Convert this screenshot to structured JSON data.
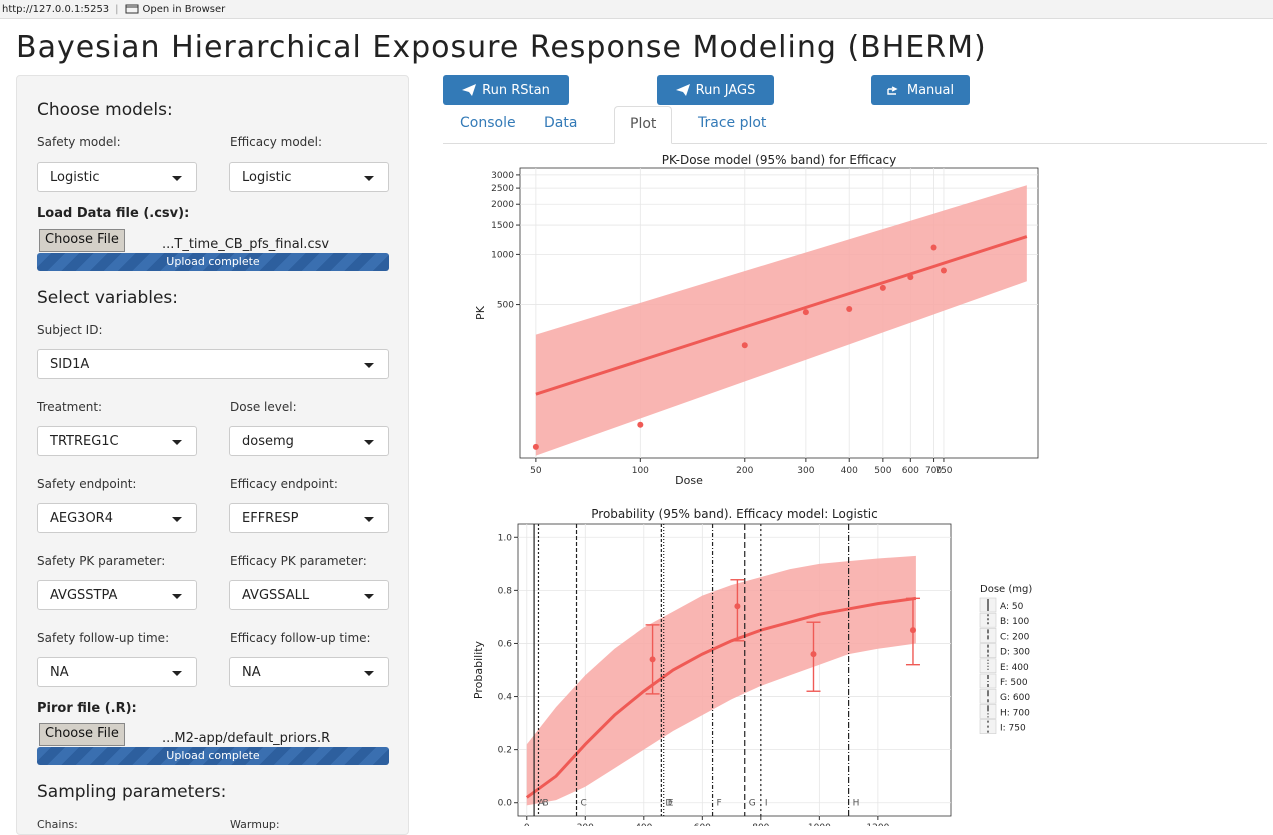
{
  "browser": {
    "url": "http://127.0.0.1:5253",
    "open_label": "Open in Browser"
  },
  "app_title": "Bayesian Hierarchical Exposure Response Modeling (BHERM)",
  "sidebar": {
    "choose_models": "Choose models:",
    "safety_model_label": "Safety model:",
    "safety_model_value": "Logistic",
    "efficacy_model_label": "Efficacy model:",
    "efficacy_model_value": "Logistic",
    "load_data_label": "Load Data file (.csv):",
    "choose_file": "Choose File",
    "data_file_name": "...T_time_CB_pfs_final.csv",
    "upload_complete": "Upload complete",
    "select_variables": "Select variables:",
    "subject_id_label": "Subject ID:",
    "subject_id_value": "SID1A",
    "treatment_label": "Treatment:",
    "treatment_value": "TRTREG1C",
    "dose_level_label": "Dose level:",
    "dose_level_value": "dosemg",
    "safety_endpoint_label": "Safety endpoint:",
    "safety_endpoint_value": "AEG3OR4",
    "efficacy_endpoint_label": "Efficacy endpoint:",
    "efficacy_endpoint_value": "EFFRESP",
    "safety_pk_label": "Safety PK parameter:",
    "safety_pk_value": "AVGSSTPA",
    "efficacy_pk_label": "Efficacy PK parameter:",
    "efficacy_pk_value": "AVGSSALL",
    "safety_followup_label": "Safety follow-up time:",
    "safety_followup_value": "NA",
    "efficacy_followup_label": "Efficacy follow-up time:",
    "efficacy_followup_value": "NA",
    "prior_file_label": "Piror file (.R):",
    "prior_file_name": "...M2-app/default_priors.R",
    "sampling_parameters": "Sampling parameters:",
    "chains_label": "Chains:",
    "warmup_label": "Warmup:"
  },
  "buttons": {
    "run_rstan": "Run RStan",
    "run_jags": "Run JAGS",
    "manual": "Manual"
  },
  "tabs": [
    "Console",
    "Data",
    "Plot",
    "Trace plot"
  ],
  "active_tab": "Plot",
  "colors": {
    "accent": "#337ab7",
    "band": "#f8a8a4",
    "line": "#ef5a55"
  },
  "chart_data": [
    {
      "type": "line",
      "title": "PK-Dose model (95% band) for Efficacy",
      "xlabel": "Dose",
      "ylabel": "PK",
      "x_scale": "log",
      "y_scale": "log",
      "x_ticks": [
        50,
        100,
        200,
        300,
        400,
        500,
        600,
        700,
        750
      ],
      "x_tick_labels": [
        "50",
        "100",
        "200",
        "300",
        "400",
        "500",
        "600",
        "700",
        "750"
      ],
      "y_ticks": [
        500,
        1000,
        1500,
        2000,
        2500,
        3000
      ],
      "y_tick_labels": [
        "500",
        "1000",
        "1500",
        "2000",
        "2500",
        "3000"
      ],
      "xlim": [
        45,
        1400
      ],
      "ylim": [
        60,
        3300
      ],
      "series": [
        {
          "values": [
            {
              "x": 50,
              "y": 145,
              "lo": 62,
              "hi": 330
            },
            {
              "x": 1300,
              "y": 1280,
              "lo": 690,
              "hi": 2600
            }
          ]
        }
      ],
      "points": [
        {
          "x": 50,
          "y": 70
        },
        {
          "x": 100,
          "y": 95
        },
        {
          "x": 200,
          "y": 285
        },
        {
          "x": 300,
          "y": 450
        },
        {
          "x": 400,
          "y": 470
        },
        {
          "x": 500,
          "y": 630
        },
        {
          "x": 600,
          "y": 730
        },
        {
          "x": 700,
          "y": 1100
        },
        {
          "x": 750,
          "y": 800
        }
      ]
    },
    {
      "type": "line",
      "title": "Probability (95% band). Efficacy model: Logistic",
      "xlabel": "",
      "ylabel": "Probability",
      "xlim": [
        -30,
        1450
      ],
      "ylim": [
        -0.05,
        1.05
      ],
      "x_ticks": [
        0,
        200,
        400,
        600,
        800,
        1000,
        1200
      ],
      "x_tick_labels": [
        "0",
        "200",
        "400",
        "600",
        "800",
        "1000",
        "1200"
      ],
      "y_ticks": [
        0.0,
        0.2,
        0.4,
        0.6,
        0.8,
        1.0
      ],
      "y_tick_labels": [
        "0.0",
        "0.2",
        "0.4",
        "0.6",
        "0.8",
        "1.0"
      ],
      "curve": [
        {
          "x": 0,
          "y": 0.02,
          "lo": -0.01,
          "hi": 0.22
        },
        {
          "x": 100,
          "y": 0.1,
          "lo": 0.01,
          "hi": 0.36
        },
        {
          "x": 200,
          "y": 0.22,
          "lo": 0.06,
          "hi": 0.48
        },
        {
          "x": 300,
          "y": 0.33,
          "lo": 0.13,
          "hi": 0.58
        },
        {
          "x": 400,
          "y": 0.42,
          "lo": 0.2,
          "hi": 0.66
        },
        {
          "x": 500,
          "y": 0.5,
          "lo": 0.27,
          "hi": 0.72
        },
        {
          "x": 600,
          "y": 0.56,
          "lo": 0.33,
          "hi": 0.78
        },
        {
          "x": 700,
          "y": 0.61,
          "lo": 0.39,
          "hi": 0.82
        },
        {
          "x": 800,
          "y": 0.65,
          "lo": 0.44,
          "hi": 0.85
        },
        {
          "x": 900,
          "y": 0.68,
          "lo": 0.48,
          "hi": 0.88
        },
        {
          "x": 1000,
          "y": 0.71,
          "lo": 0.52,
          "hi": 0.9
        },
        {
          "x": 1100,
          "y": 0.73,
          "lo": 0.56,
          "hi": 0.91
        },
        {
          "x": 1200,
          "y": 0.75,
          "lo": 0.58,
          "hi": 0.92
        },
        {
          "x": 1330,
          "y": 0.77,
          "lo": 0.6,
          "hi": 0.93
        }
      ],
      "observed": [
        {
          "x": 430,
          "y": 0.54,
          "lo": 0.41,
          "hi": 0.67
        },
        {
          "x": 720,
          "y": 0.74,
          "lo": 0.61,
          "hi": 0.84
        },
        {
          "x": 980,
          "y": 0.56,
          "lo": 0.42,
          "hi": 0.68
        },
        {
          "x": 1320,
          "y": 0.65,
          "lo": 0.52,
          "hi": 0.77
        }
      ],
      "dose_lines": [
        {
          "label": "A",
          "x": 25,
          "legend": "A: 50"
        },
        {
          "label": "B",
          "x": 40,
          "legend": "B: 100"
        },
        {
          "label": "C",
          "x": 170,
          "legend": "C: 200"
        },
        {
          "label": "D",
          "x": 460,
          "legend": "D: 300"
        },
        {
          "label": "E",
          "x": 468,
          "legend": "E: 400"
        },
        {
          "label": "F",
          "x": 635,
          "legend": "F: 500"
        },
        {
          "label": "G",
          "x": 745,
          "legend": "G: 600"
        },
        {
          "label": "H",
          "x": 1100,
          "legend": "H: 700"
        },
        {
          "label": "I",
          "x": 800,
          "legend": "I: 750"
        }
      ],
      "legend_title": "Dose (mg)",
      "legend_position": "right"
    }
  ]
}
